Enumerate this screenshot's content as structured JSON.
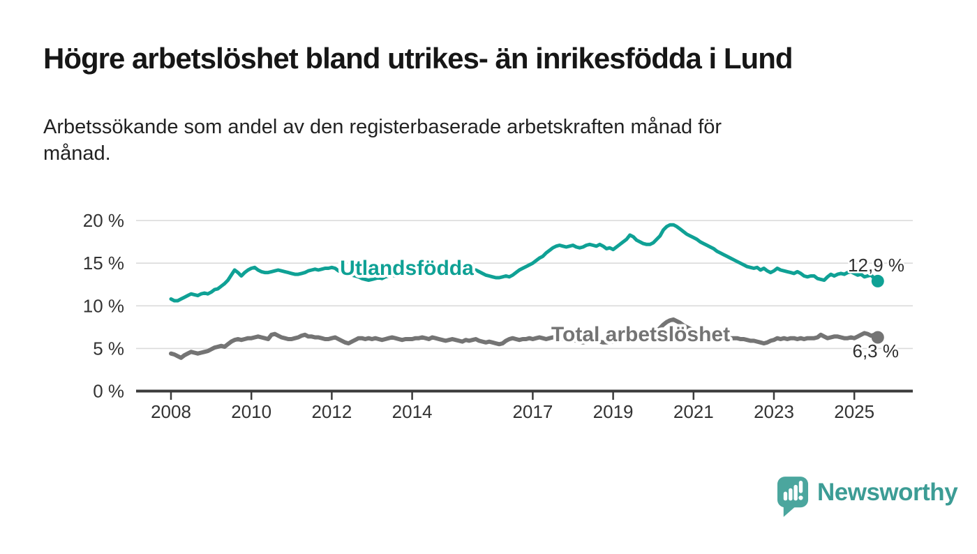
{
  "header": {
    "title": "Högre arbetslöshet bland utrikes- än inrikesfödda i Lund",
    "subtitle": "Arbetssökande som andel av den registerbaserade arbetskraften månad för\nmånad."
  },
  "chart_data": {
    "type": "line",
    "title": "Högre arbetslöshet bland utrikes- än inrikesfödda i Lund",
    "subtitle": "Arbetssökande som andel av den registerbaserade arbetskraften månad för månad.",
    "unit": "%",
    "x_axis": {
      "start": "2008-01",
      "end": "2025-08",
      "frequency": "monthly",
      "tick_labels": [
        "2008",
        "2010",
        "2012",
        "2014",
        "2017",
        "2019",
        "2021",
        "2023",
        "2025"
      ]
    },
    "y_axis": {
      "tick_labels": [
        "0 %",
        "5 %",
        "10 %",
        "15 %",
        "20 %"
      ],
      "range": [
        0,
        21.5
      ],
      "gridlines": true
    },
    "legend_position": "inline-labels",
    "series": [
      {
        "name": "Utlandsfödda",
        "color": "#0fa195",
        "end_value_label": "12,9 %",
        "last_value": 12.9,
        "values": [
          10.8,
          10.6,
          10.6,
          10.8,
          11.0,
          11.2,
          11.4,
          11.3,
          11.2,
          11.4,
          11.5,
          11.4,
          11.6,
          11.9,
          12.0,
          12.3,
          12.6,
          13.0,
          13.6,
          14.2,
          13.9,
          13.5,
          13.9,
          14.2,
          14.4,
          14.5,
          14.2,
          14.0,
          13.9,
          13.9,
          14.0,
          14.1,
          14.2,
          14.1,
          14.0,
          13.9,
          13.8,
          13.7,
          13.7,
          13.8,
          13.9,
          14.1,
          14.2,
          14.3,
          14.2,
          14.3,
          14.4,
          14.4,
          14.5,
          14.4,
          14.1,
          14.0,
          13.8,
          13.7,
          13.6,
          13.5,
          13.4,
          13.2,
          13.1,
          13.0,
          13.1,
          13.2,
          13.3,
          13.2,
          13.4,
          13.5,
          13.6,
          13.5,
          13.6,
          13.7,
          13.8,
          13.9,
          14.0,
          14.1,
          14.0,
          13.9,
          14.0,
          14.1,
          14.2,
          14.1,
          14.0,
          14.1,
          14.2,
          14.1,
          14.0,
          14.1,
          14.2,
          14.1,
          14.0,
          14.1,
          14.2,
          14.2,
          14.0,
          13.8,
          13.6,
          13.5,
          13.4,
          13.3,
          13.3,
          13.4,
          13.5,
          13.4,
          13.6,
          13.9,
          14.2,
          14.4,
          14.6,
          14.8,
          15.0,
          15.3,
          15.6,
          15.8,
          16.2,
          16.5,
          16.8,
          17.0,
          17.1,
          17.0,
          16.9,
          17.0,
          17.1,
          16.9,
          16.8,
          16.9,
          17.1,
          17.2,
          17.1,
          17.0,
          17.2,
          17.0,
          16.7,
          16.8,
          16.6,
          16.9,
          17.2,
          17.5,
          17.8,
          18.3,
          18.1,
          17.7,
          17.5,
          17.3,
          17.2,
          17.2,
          17.4,
          17.8,
          18.2,
          18.9,
          19.3,
          19.5,
          19.5,
          19.3,
          19.0,
          18.7,
          18.4,
          18.2,
          18.0,
          17.8,
          17.5,
          17.3,
          17.1,
          16.9,
          16.7,
          16.4,
          16.2,
          16.0,
          15.8,
          15.6,
          15.4,
          15.2,
          15.0,
          14.8,
          14.6,
          14.5,
          14.4,
          14.5,
          14.2,
          14.4,
          14.1,
          13.9,
          14.1,
          14.4,
          14.2,
          14.1,
          14.0,
          13.9,
          13.8,
          14.0,
          13.8,
          13.5,
          13.4,
          13.5,
          13.5,
          13.2,
          13.1,
          13.0,
          13.4,
          13.7,
          13.5,
          13.7,
          13.8,
          13.7,
          13.9,
          14.0,
          13.8,
          13.6,
          13.7,
          13.4,
          13.5,
          13.6,
          13.2,
          12.9
        ]
      },
      {
        "name": "Total arbetslöshet",
        "color": "#747474",
        "end_value_label": "6,3 %",
        "last_value": 6.3,
        "values": [
          4.4,
          4.3,
          4.1,
          3.9,
          4.2,
          4.4,
          4.6,
          4.5,
          4.4,
          4.5,
          4.6,
          4.7,
          4.9,
          5.1,
          5.2,
          5.3,
          5.2,
          5.5,
          5.8,
          6.0,
          6.1,
          6.0,
          6.1,
          6.2,
          6.2,
          6.3,
          6.4,
          6.3,
          6.2,
          6.1,
          6.6,
          6.7,
          6.5,
          6.3,
          6.2,
          6.1,
          6.1,
          6.2,
          6.3,
          6.5,
          6.6,
          6.4,
          6.4,
          6.3,
          6.3,
          6.2,
          6.1,
          6.1,
          6.2,
          6.3,
          6.1,
          5.9,
          5.7,
          5.6,
          5.8,
          6.0,
          6.2,
          6.2,
          6.1,
          6.2,
          6.1,
          6.2,
          6.1,
          6.0,
          6.1,
          6.2,
          6.3,
          6.2,
          6.1,
          6.0,
          6.1,
          6.1,
          6.1,
          6.2,
          6.2,
          6.3,
          6.2,
          6.1,
          6.3,
          6.2,
          6.1,
          6.0,
          5.9,
          6.0,
          6.1,
          6.0,
          5.9,
          5.8,
          6.0,
          5.9,
          6.0,
          6.1,
          5.9,
          5.8,
          5.7,
          5.8,
          5.7,
          5.6,
          5.5,
          5.6,
          5.9,
          6.1,
          6.2,
          6.1,
          6.0,
          6.1,
          6.1,
          6.2,
          6.1,
          6.2,
          6.3,
          6.2,
          6.1,
          6.2,
          6.3,
          6.2,
          6.1,
          6.1,
          6.0,
          6.1,
          6.0,
          5.9,
          5.8,
          5.7,
          5.8,
          5.9,
          6.0,
          5.9,
          5.8,
          5.7,
          5.7,
          5.8,
          5.8,
          5.9,
          5.9,
          6.0,
          6.1,
          6.2,
          6.3,
          6.2,
          6.1,
          6.2,
          6.3,
          6.5,
          6.7,
          7.0,
          7.4,
          7.8,
          8.1,
          8.3,
          8.4,
          8.2,
          8.0,
          7.7,
          7.5,
          7.3,
          7.1,
          6.9,
          6.7,
          6.5,
          6.4,
          6.3,
          6.3,
          6.2,
          6.1,
          6.1,
          6.2,
          6.2,
          6.2,
          6.2,
          6.1,
          6.1,
          6.0,
          5.9,
          5.9,
          5.8,
          5.7,
          5.6,
          5.7,
          5.9,
          6.0,
          6.2,
          6.1,
          6.2,
          6.1,
          6.2,
          6.2,
          6.1,
          6.2,
          6.1,
          6.2,
          6.2,
          6.2,
          6.3,
          6.6,
          6.4,
          6.2,
          6.3,
          6.4,
          6.4,
          6.3,
          6.2,
          6.2,
          6.3,
          6.2,
          6.4,
          6.6,
          6.8,
          6.7,
          6.5,
          6.6,
          6.3
        ]
      }
    ],
    "style": {
      "grid_color": "#dbdbdb",
      "axis_color": "#3b3b3b",
      "tick_text_color": "#333333"
    }
  },
  "branding": {
    "wordmark": "Newsworthy",
    "icon": "bar-chart-speech-bubble-icon",
    "icon_color": "#4ba69e",
    "text_color": "#3c9c95"
  }
}
